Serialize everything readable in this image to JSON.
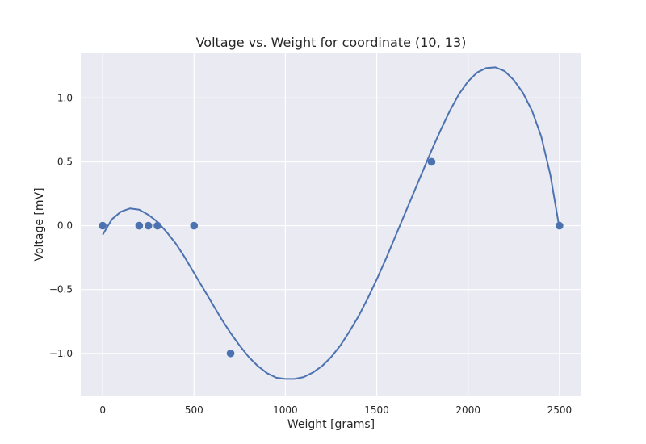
{
  "chart_data": {
    "type": "line",
    "title": "Voltage vs. Weight for coordinate (10, 13)",
    "xlabel": "Weight [grams]",
    "ylabel": "Voltage [mV]",
    "xlim": [
      -120,
      2620
    ],
    "ylim": [
      -1.33,
      1.35
    ],
    "xticks": [
      0,
      500,
      1000,
      1500,
      2000,
      2500
    ],
    "xtick_labels": [
      "0",
      "500",
      "1000",
      "1500",
      "2000",
      "2500"
    ],
    "yticks": [
      -1.0,
      -0.5,
      0.0,
      0.5,
      1.0
    ],
    "ytick_labels": [
      "−1.0",
      "−0.5",
      "0.0",
      "0.5",
      "1.0"
    ],
    "grid": true,
    "colors": {
      "background": "#eaeaf2",
      "grid": "#ffffff",
      "series": "#4c72b0",
      "text": "#262626"
    },
    "series": [
      {
        "kind": "scatter",
        "x": [
          0,
          200,
          250,
          300,
          500,
          700,
          1800,
          2500
        ],
        "y": [
          0,
          0,
          0,
          0,
          0,
          -1,
          0.5,
          0
        ]
      },
      {
        "kind": "line",
        "x": [
          0,
          50,
          100,
          150,
          200,
          250,
          300,
          350,
          400,
          450,
          500,
          550,
          600,
          650,
          700,
          750,
          800,
          850,
          900,
          950,
          1000,
          1050,
          1100,
          1150,
          1200,
          1250,
          1300,
          1350,
          1400,
          1450,
          1500,
          1550,
          1600,
          1650,
          1700,
          1750,
          1800,
          1850,
          1900,
          1950,
          2000,
          2050,
          2100,
          2150,
          2200,
          2250,
          2300,
          2350,
          2400,
          2450,
          2500
        ],
        "y": [
          -0.07,
          0.05,
          0.11,
          0.135,
          0.125,
          0.085,
          0.03,
          -0.05,
          -0.14,
          -0.25,
          -0.37,
          -0.49,
          -0.61,
          -0.73,
          -0.84,
          -0.94,
          -1.03,
          -1.1,
          -1.155,
          -1.19,
          -1.2,
          -1.2,
          -1.185,
          -1.15,
          -1.1,
          -1.03,
          -0.94,
          -0.83,
          -0.71,
          -0.57,
          -0.42,
          -0.26,
          -0.09,
          0.08,
          0.25,
          0.42,
          0.59,
          0.75,
          0.9,
          1.03,
          1.13,
          1.2,
          1.235,
          1.24,
          1.21,
          1.14,
          1.04,
          0.9,
          0.7,
          0.4,
          -0.02
        ]
      }
    ]
  }
}
